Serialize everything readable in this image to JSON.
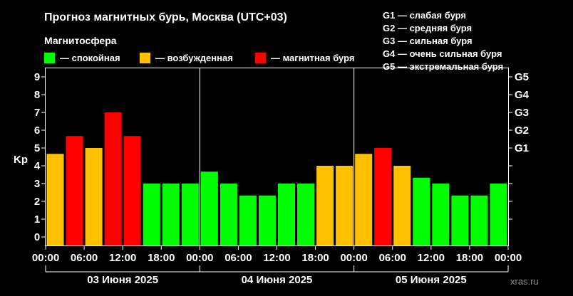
{
  "chart_data": {
    "type": "bar",
    "title": "Прогноз магнитных бурь, Москва (UTC+03)",
    "subtitle": "Магнитосфера",
    "ylabel": "Kp",
    "ylim": [
      0,
      9
    ],
    "y_ticks": [
      0,
      1,
      2,
      3,
      4,
      5,
      6,
      7,
      8,
      9
    ],
    "right_ticks": [
      {
        "label": "G1",
        "kp": 5
      },
      {
        "label": "G2",
        "kp": 6
      },
      {
        "label": "G3",
        "kp": 7
      },
      {
        "label": "G4",
        "kp": 8
      },
      {
        "label": "G5",
        "kp": 9
      }
    ],
    "x_tick_labels": [
      "00:00",
      "06:00",
      "12:00",
      "18:00",
      "00:00",
      "06:00",
      "12:00",
      "18:00",
      "00:00",
      "06:00",
      "12:00",
      "18:00",
      "00:00"
    ],
    "days": [
      "03 Июня 2025",
      "04 Июня 2025",
      "05 Июня 2025"
    ],
    "values": [
      4.67,
      5.67,
      5.0,
      7.0,
      5.67,
      3.0,
      3.0,
      3.0,
      3.67,
      3.0,
      2.33,
      2.33,
      3.0,
      3.0,
      4.0,
      4.0,
      4.67,
      5.0,
      4.0,
      3.33,
      3.0,
      2.33,
      2.33,
      3.0
    ],
    "levels": [
      "возбужденная",
      "магнитная буря",
      "возбужденная",
      "магнитная буря",
      "магнитная буря",
      "спокойная",
      "спокойная",
      "спокойная",
      "спокойная",
      "спокойная",
      "спокойная",
      "спокойная",
      "спокойная",
      "спокойная",
      "возбужденная",
      "возбужденная",
      "возбужденная",
      "магнитная буря",
      "возбужденная",
      "спокойная",
      "спокойная",
      "спокойная",
      "спокойная",
      "спокойная"
    ],
    "legend": [
      {
        "label": "— спокойная",
        "key": "спокойная",
        "color": "#00ff00"
      },
      {
        "label": "— возбужденная",
        "key": "возбужденная",
        "color": "#ffc000"
      },
      {
        "label": "— магнитная буря",
        "key": "магнитная буря",
        "color": "#ff0000"
      }
    ],
    "storm_scale": [
      "G1 — слабая буря",
      "G2 — средняя буря",
      "G3 — сильная буря",
      "G4 — очень сильная буря",
      "G5 — экстремальная буря"
    ],
    "grid": false
  },
  "credit": "xras.ru"
}
